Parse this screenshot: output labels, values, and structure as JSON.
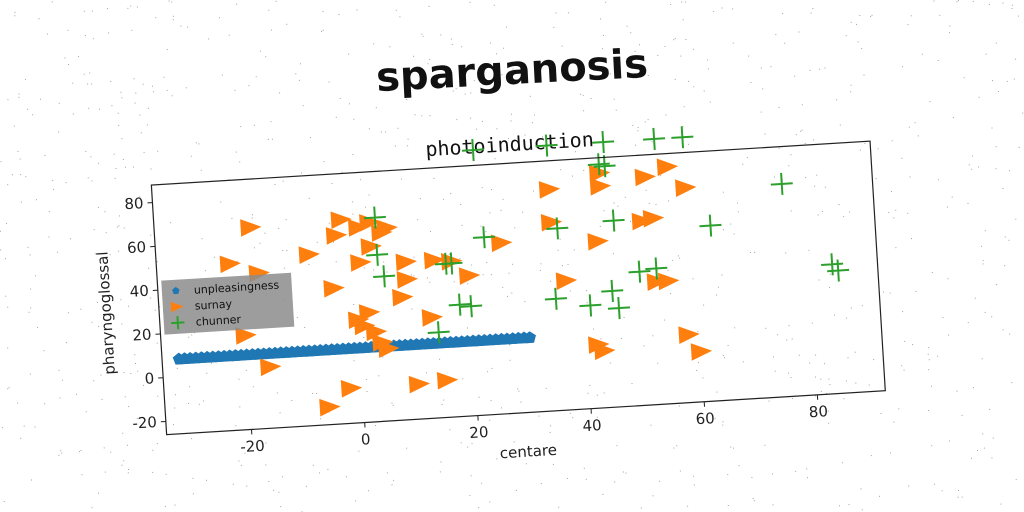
{
  "figure": {
    "title": "sparganosis"
  },
  "chart_data": {
    "type": "scatter",
    "title": "photoinduction",
    "xlabel": "centare",
    "ylabel": "pharyngoglossal",
    "xlim": [
      -35,
      92
    ],
    "ylim": [
      -26,
      88
    ],
    "xticks": [
      "-20",
      "0",
      "20",
      "40",
      "60",
      "80"
    ],
    "yticks": [
      "-20",
      "0",
      "20",
      "40",
      "60",
      "80"
    ],
    "grid": false,
    "legend_position": "center-left",
    "series": [
      {
        "name": "unpleasingness",
        "marker": "pentagon",
        "color": "#1f77b4",
        "x": [
          -32,
          -31,
          -30,
          -29,
          -28,
          -27,
          -26,
          -25,
          -24,
          -23,
          -22,
          -21,
          -20,
          -19,
          -18,
          -17,
          -16,
          -15,
          -14,
          -13,
          -12,
          -11,
          -10,
          -9,
          -8,
          -7,
          -6,
          -5,
          -4,
          -3,
          -2,
          -1,
          0,
          1,
          2,
          3,
          4,
          5,
          6,
          7,
          8,
          9,
          10,
          11,
          12,
          13,
          14,
          15,
          16,
          17,
          18,
          19,
          20,
          21,
          22,
          23,
          24,
          25,
          26,
          27,
          28,
          29,
          30
        ],
        "y": [
          8,
          8,
          8,
          8,
          8,
          8,
          8,
          8,
          8,
          8,
          8,
          8,
          8,
          8,
          8,
          8,
          8,
          8,
          8,
          8,
          8,
          8,
          8,
          8,
          8,
          8,
          8,
          8,
          8,
          8,
          8,
          8,
          8,
          8,
          8,
          8,
          8,
          8,
          8,
          8,
          8,
          8,
          8,
          8,
          8,
          8,
          8,
          8,
          8,
          8,
          8,
          8,
          8,
          8,
          8,
          8,
          8,
          8,
          8,
          8,
          8,
          8,
          8
        ]
      },
      {
        "name": "surnay",
        "marker": "triangle-right",
        "color": "#ff7f0e",
        "x": [
          -18,
          -22,
          -17,
          -20,
          -16,
          -8,
          -3,
          -2,
          -6,
          -4,
          0,
          1,
          2,
          3,
          4,
          5,
          6,
          3,
          1,
          9,
          9,
          8,
          14,
          17,
          10,
          15,
          20,
          35,
          35,
          37,
          43,
          42,
          43,
          44,
          44,
          52,
          51,
          53,
          55,
          56,
          53,
          58,
          59,
          60,
          -2,
          5,
          1,
          3,
          13,
          26
        ],
        "y": [
          66,
          50,
          45,
          17,
          2,
          52,
          60,
          -10,
          -18,
          36,
          21,
          18,
          24,
          15,
          10,
          7,
          62,
          54,
          47,
          46,
          38,
          30,
          46,
          45,
          -10,
          -9,
          38,
          75,
          60,
          33,
          50,
          3,
          0,
          81,
          75,
          78,
          58,
          59,
          30,
          82,
          30,
          5,
          72,
          -3,
          67,
          60,
          63,
          65,
          20,
          52
        ]
      },
      {
        "name": "chunner",
        "marker": "plus",
        "color": "#2ca02c",
        "x": [
          22,
          35,
          45,
          44,
          54,
          59,
          45,
          4,
          4,
          5,
          17,
          16,
          18,
          23,
          36,
          46,
          63,
          76,
          84,
          85,
          53,
          50,
          41,
          35,
          45,
          46,
          20,
          14
        ],
        "y": [
          95,
          95,
          95,
          85,
          95,
          95,
          84,
          67,
          50,
          40,
          44,
          44,
          25,
          55,
          57,
          59,
          54,
          71,
          33,
          30,
          36,
          35,
          21,
          25,
          27,
          19,
          24,
          13
        ]
      }
    ]
  }
}
